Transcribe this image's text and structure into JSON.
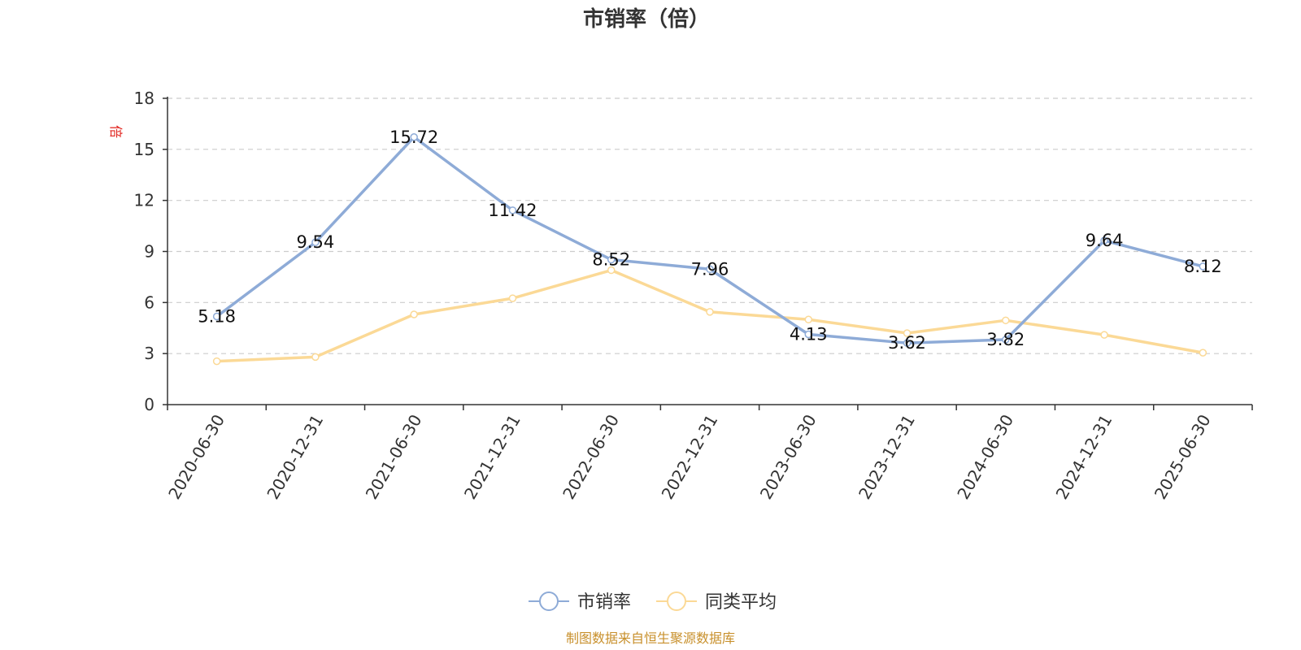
{
  "chart_data": {
    "type": "line",
    "title": "市销率（倍）",
    "ylabel": "倍",
    "xlabel": "",
    "ylim": [
      0,
      18
    ],
    "yticks": [
      0,
      3,
      6,
      9,
      12,
      15,
      18
    ],
    "grid": true,
    "legend_position": "bottom-center",
    "categories": [
      "2020-06-30",
      "2020-12-31",
      "2021-06-30",
      "2021-12-31",
      "2022-06-30",
      "2022-12-31",
      "2023-06-30",
      "2023-12-31",
      "2024-06-30",
      "2024-12-31",
      "2025-06-30"
    ],
    "series": [
      {
        "name": "市销率",
        "color": "#8eabd7",
        "values": [
          5.18,
          9.54,
          15.72,
          11.42,
          8.52,
          7.96,
          4.13,
          3.62,
          3.82,
          9.64,
          8.12
        ],
        "labels": [
          "5.18",
          "9.54",
          "15.72",
          "11.42",
          "8.52",
          "7.96",
          "4.13",
          "3.62",
          "3.82",
          "9.64",
          "8.12"
        ]
      },
      {
        "name": "同类平均",
        "color": "#fbd996",
        "values": [
          2.55,
          2.8,
          5.3,
          6.25,
          7.9,
          5.45,
          5.0,
          4.2,
          4.95,
          4.1,
          3.05
        ]
      }
    ]
  },
  "footer": {
    "source": "制图数据来自恒生聚源数据库"
  }
}
